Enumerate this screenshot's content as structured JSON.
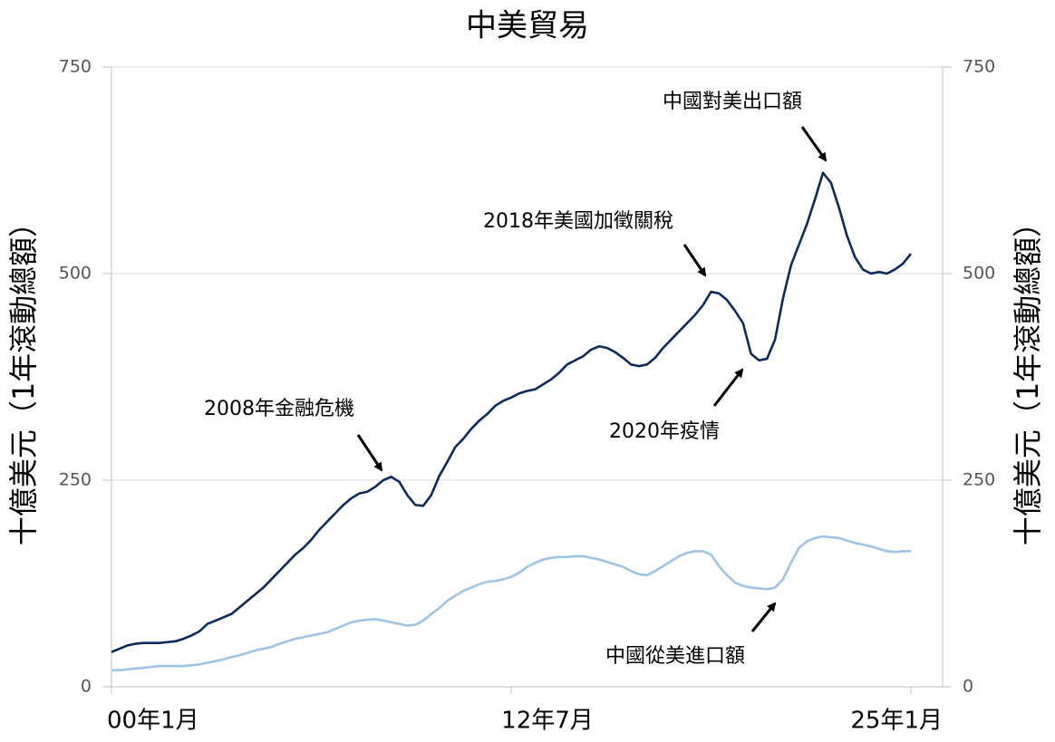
{
  "chart_data": {
    "type": "line",
    "title": "中美貿易",
    "ylabel": "十億美元（1年滾動總額）",
    "y2label": "十億美元（1年滾動總額）",
    "categories": [
      "00年1月",
      null,
      null,
      null,
      null,
      null,
      null,
      null,
      null,
      null,
      null,
      null,
      null,
      null,
      null,
      null,
      null,
      null,
      null,
      null,
      null,
      null,
      null,
      null,
      null,
      null,
      null,
      null,
      null,
      null,
      null,
      null,
      null,
      null,
      null,
      null,
      null,
      null,
      null,
      null,
      null,
      null,
      null,
      null,
      null,
      null,
      null,
      null,
      null,
      null,
      "12年7月",
      null,
      null,
      null,
      null,
      null,
      null,
      null,
      null,
      null,
      null,
      null,
      null,
      null,
      null,
      null,
      null,
      null,
      null,
      null,
      null,
      null,
      null,
      null,
      null,
      null,
      null,
      null,
      null,
      null,
      null,
      null,
      null,
      null,
      null,
      null,
      null,
      null,
      null,
      null,
      null,
      null,
      null,
      null,
      null,
      null,
      null,
      null,
      null,
      null,
      "25年1月"
    ],
    "series": [
      {
        "name": "中國對美出口額",
        "color": "#0d2a5c",
        "values": [
          42,
          46,
          50,
          52,
          53,
          53,
          53,
          54,
          55,
          58,
          62,
          67,
          76,
          80,
          84,
          88,
          96,
          104,
          112,
          120,
          130,
          140,
          150,
          160,
          168,
          178,
          190,
          200,
          210,
          220,
          228,
          234,
          236,
          242,
          250,
          254,
          248,
          232,
          220,
          219,
          232,
          255,
          272,
          290,
          300,
          312,
          322,
          330,
          340,
          346,
          350,
          355,
          358,
          360,
          366,
          372,
          380,
          390,
          395,
          400,
          408,
          412,
          410,
          405,
          398,
          390,
          388,
          390,
          398,
          410,
          420,
          430,
          440,
          450,
          462,
          478,
          476,
          468,
          455,
          440,
          403,
          395,
          397,
          420,
          470,
          510,
          535,
          560,
          590,
          622,
          610,
          580,
          546,
          520,
          505,
          500,
          502,
          500,
          505,
          512,
          524
        ]
      },
      {
        "name": "中國從美進口額",
        "color": "#9dc3e6",
        "values": [
          20,
          20,
          21,
          22,
          23,
          24,
          25,
          25,
          25,
          25,
          26,
          27,
          29,
          31,
          33,
          36,
          38,
          41,
          44,
          46,
          48,
          52,
          55,
          58,
          60,
          62,
          64,
          66,
          70,
          74,
          78,
          80,
          81,
          82,
          80,
          78,
          76,
          74,
          75,
          80,
          88,
          95,
          104,
          110,
          116,
          120,
          124,
          127,
          128,
          130,
          133,
          138,
          145,
          150,
          154,
          156,
          157,
          157,
          158,
          158,
          156,
          154,
          151,
          148,
          145,
          140,
          136,
          135,
          140,
          146,
          152,
          158,
          162,
          164,
          164,
          160,
          146,
          135,
          126,
          122,
          120,
          119,
          118,
          120,
          130,
          150,
          168,
          176,
          180,
          182,
          181,
          180,
          177,
          174,
          172,
          170,
          167,
          164,
          163,
          164,
          164
        ]
      }
    ],
    "annotations": [
      "2008年金融危機",
      "2018年美國加徵關稅",
      "2020年疫情"
    ],
    "ylim": [
      0,
      750
    ],
    "yticks": [
      0,
      250,
      500,
      750
    ],
    "y2lim": [
      0,
      750
    ],
    "y2ticks": [
      0,
      250,
      500,
      750
    ],
    "grid": true
  }
}
